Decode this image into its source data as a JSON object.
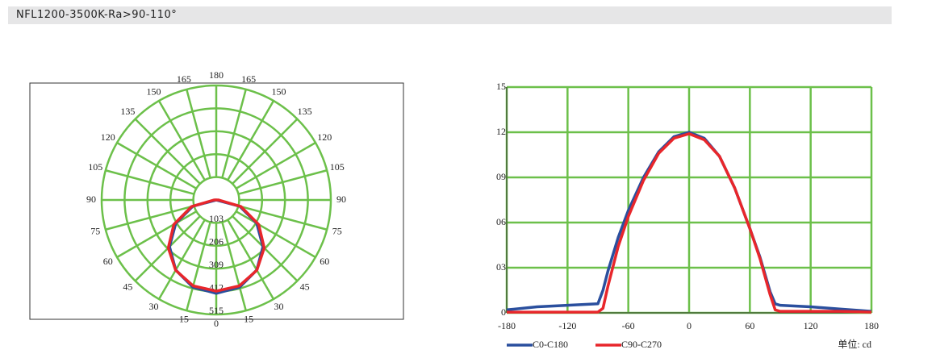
{
  "header": {
    "title": "NFL1200-3500K-Ra>90-110°"
  },
  "chart_data": [
    {
      "type": "polar",
      "rlim": [
        0,
        515
      ],
      "rticks": [
        103,
        206,
        309,
        412,
        515
      ],
      "angle_ticks": [
        0,
        15,
        30,
        45,
        60,
        75,
        90,
        105,
        120,
        135,
        150,
        165,
        180
      ],
      "grid_color": "#6cc04a",
      "angles": [
        -90,
        -75,
        -60,
        -45,
        -30,
        -15,
        0,
        15,
        30,
        45,
        60,
        75,
        90
      ],
      "series": [
        {
          "color": "#2a4f9e",
          "values": [
            0,
            109,
            210,
            297,
            364,
            406,
            420,
            406,
            364,
            297,
            210,
            109,
            0
          ]
        },
        {
          "color": "#e8262b",
          "values": [
            10,
            115,
            220,
            305,
            365,
            400,
            410,
            400,
            365,
            305,
            220,
            115,
            10
          ]
        }
      ]
    },
    {
      "type": "line",
      "x": [
        -180,
        -150,
        -120,
        -90,
        -85,
        -80,
        -70,
        -60,
        -45,
        -30,
        -15,
        0,
        15,
        30,
        45,
        60,
        70,
        80,
        85,
        90,
        120,
        150,
        180
      ],
      "xlim": [
        -180,
        180
      ],
      "xticks": [
        -180,
        -120,
        -60,
        0,
        60,
        120,
        180
      ],
      "ylim": [
        0,
        15
      ],
      "yticks": [
        0,
        {
          "value": 3,
          "label": "03"
        },
        {
          "value": 6,
          "label": "06"
        },
        {
          "value": 9,
          "label": "09"
        },
        12,
        15
      ],
      "grid": true,
      "grid_color": "#6cc04a",
      "series": [
        {
          "name": "C0-C180",
          "color": "#2a4f9e",
          "values": [
            0.2,
            0.4,
            0.5,
            0.6,
            1.5,
            2.8,
            5.0,
            6.8,
            9.0,
            10.7,
            11.7,
            12.0,
            11.6,
            10.4,
            8.3,
            5.6,
            3.7,
            1.4,
            0.6,
            0.5,
            0.4,
            0.25,
            0.1
          ]
        },
        {
          "name": "C90-C270",
          "color": "#e8262b",
          "values": [
            0.05,
            0.05,
            0.05,
            0.05,
            0.3,
            1.8,
            4.4,
            6.4,
            8.8,
            10.6,
            11.6,
            11.9,
            11.5,
            10.4,
            8.3,
            5.6,
            3.6,
            1.2,
            0.2,
            0.1,
            0.1,
            0.1,
            0.05
          ]
        }
      ],
      "unit_label": "单位: cd"
    }
  ]
}
